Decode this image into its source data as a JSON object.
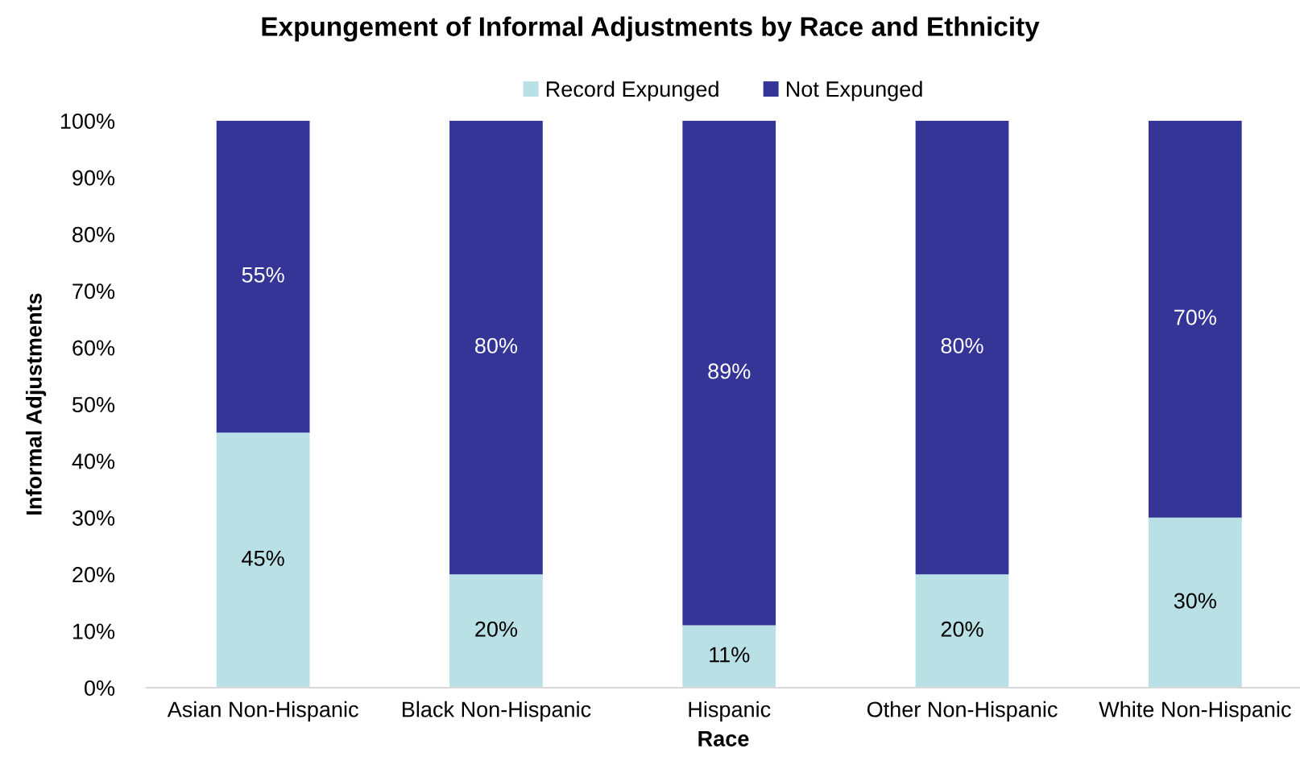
{
  "chart_data": {
    "type": "bar",
    "stacked": true,
    "title": "Expungement of Informal Adjustments by Race and Ethnicity",
    "xlabel": "Race",
    "ylabel": "Informal Adjustments",
    "categories": [
      "Asian Non-Hispanic",
      "Black Non-Hispanic",
      "Hispanic",
      "Other Non-Hispanic",
      "White Non-Hispanic"
    ],
    "series": [
      {
        "name": "Record Expunged",
        "color": "#b9e0e4",
        "values": [
          45,
          20,
          11,
          20,
          30
        ],
        "value_labels": [
          "45%",
          "20%",
          "11%",
          "20%",
          "30%"
        ]
      },
      {
        "name": "Not Expunged",
        "color": "#353598",
        "values": [
          55,
          80,
          89,
          80,
          70
        ],
        "value_labels": [
          "55%",
          "80%",
          "89%",
          "80%",
          "70%"
        ]
      }
    ],
    "ylim": [
      0,
      100
    ],
    "yticks": [
      {
        "value": 0,
        "label": "0%"
      },
      {
        "value": 10,
        "label": "10%"
      },
      {
        "value": 20,
        "label": "20%"
      },
      {
        "value": 30,
        "label": "30%"
      },
      {
        "value": 40,
        "label": "40%"
      },
      {
        "value": 50,
        "label": "50%"
      },
      {
        "value": 60,
        "label": "60%"
      },
      {
        "value": 70,
        "label": "70%"
      },
      {
        "value": 80,
        "label": "80%"
      },
      {
        "value": 90,
        "label": "90%"
      },
      {
        "value": 100,
        "label": "100%"
      }
    ],
    "grid": false,
    "legend": "top"
  }
}
